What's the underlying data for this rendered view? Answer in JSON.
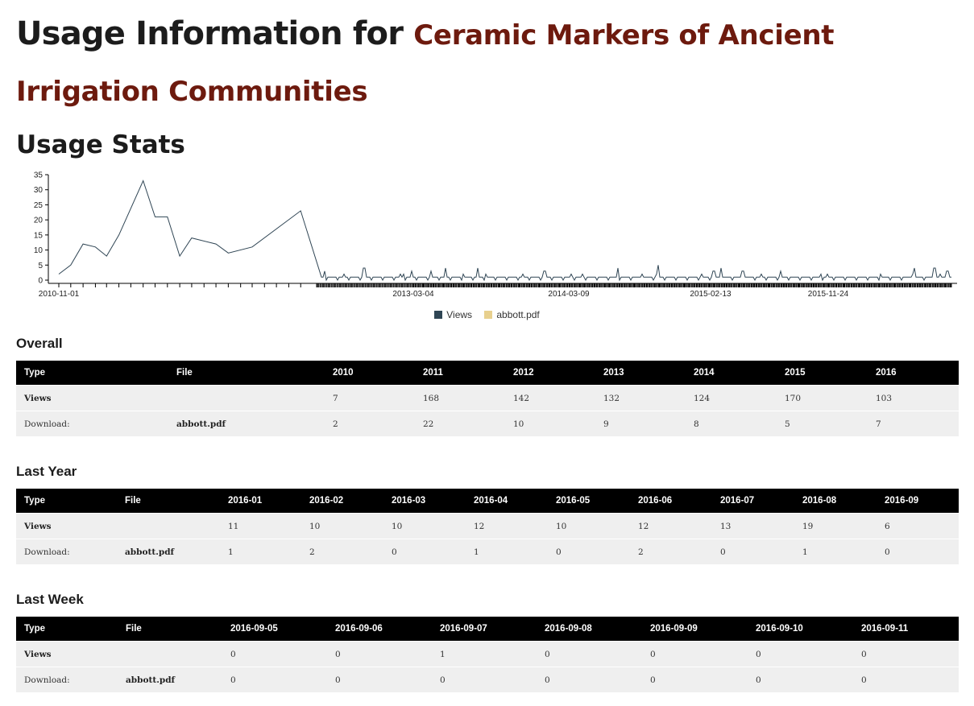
{
  "header": {
    "prefix": "Usage Information for",
    "item_title": "Ceramic Markers of Ancient Irrigation Communities"
  },
  "usage_heading": "Usage Stats",
  "chart_data": {
    "type": "line",
    "x_tick_labels": [
      "2010-11-01",
      "2013-03-04",
      "2014-03-09",
      "2015-02-13",
      "2015-11-24"
    ],
    "y_ticks": [
      0,
      5,
      10,
      15,
      20,
      25,
      30,
      35
    ],
    "ylim": [
      0,
      35
    ],
    "legend": [
      "Views",
      "abbott.pdf"
    ],
    "legend_placement": "bottom-center",
    "colors": {
      "Views": "#2f4554",
      "abbott.pdf": "#e8d08e"
    },
    "series": [
      {
        "name": "Views",
        "early_points": [
          {
            "x": "2010-11",
            "y": 2
          },
          {
            "x": "2010-12",
            "y": 5
          },
          {
            "x": "2011-01",
            "y": 12
          },
          {
            "x": "2011-02",
            "y": 11
          },
          {
            "x": "2011-03",
            "y": 8
          },
          {
            "x": "2011-04",
            "y": 15
          },
          {
            "x": "2011-06",
            "y": 33
          },
          {
            "x": "2011-07",
            "y": 21
          },
          {
            "x": "2011-08",
            "y": 21
          },
          {
            "x": "2011-09",
            "y": 8
          },
          {
            "x": "2011-10",
            "y": 14
          },
          {
            "x": "2011-12",
            "y": 12
          },
          {
            "x": "2012-01",
            "y": 9
          },
          {
            "x": "2012-03",
            "y": 11
          },
          {
            "x": "2012-07",
            "y": 23
          }
        ],
        "daily_baseline": 1,
        "daily_spikes": [
          {
            "x": "2012-08-28",
            "y": 3
          },
          {
            "x": "2012-11-20",
            "y": 4
          },
          {
            "x": "2013-03-01",
            "y": 3
          },
          {
            "x": "2013-04-15",
            "y": 3
          },
          {
            "x": "2013-05-20",
            "y": 4
          },
          {
            "x": "2013-08-05",
            "y": 4
          },
          {
            "x": "2014-01-10",
            "y": 3
          },
          {
            "x": "2014-07-05",
            "y": 4
          },
          {
            "x": "2014-10-10",
            "y": 5
          },
          {
            "x": "2015-02-20",
            "y": 3
          },
          {
            "x": "2015-03-10",
            "y": 4
          },
          {
            "x": "2015-05-01",
            "y": 3
          },
          {
            "x": "2015-08-01",
            "y": 3
          },
          {
            "x": "2016-06-15",
            "y": 4
          },
          {
            "x": "2016-08-01",
            "y": 4
          },
          {
            "x": "2016-09-01",
            "y": 3
          }
        ]
      }
    ]
  },
  "overall": {
    "heading": "Overall",
    "headers": [
      "Type",
      "File",
      "2010",
      "2011",
      "2012",
      "2013",
      "2014",
      "2015",
      "2016"
    ],
    "rows": [
      [
        "Views",
        "",
        "7",
        "168",
        "142",
        "132",
        "124",
        "170",
        "103"
      ],
      [
        "Download:",
        "abbott.pdf",
        "2",
        "22",
        "10",
        "9",
        "8",
        "5",
        "7"
      ]
    ]
  },
  "last_year": {
    "heading": "Last Year",
    "headers": [
      "Type",
      "File",
      "2016-01",
      "2016-02",
      "2016-03",
      "2016-04",
      "2016-05",
      "2016-06",
      "2016-07",
      "2016-08",
      "2016-09"
    ],
    "rows": [
      [
        "Views",
        "",
        "11",
        "10",
        "10",
        "12",
        "10",
        "12",
        "13",
        "19",
        "6"
      ],
      [
        "Download:",
        "abbott.pdf",
        "1",
        "2",
        "0",
        "1",
        "0",
        "2",
        "0",
        "1",
        "0"
      ]
    ]
  },
  "last_week": {
    "heading": "Last Week",
    "headers": [
      "Type",
      "File",
      "2016-09-05",
      "2016-09-06",
      "2016-09-07",
      "2016-09-08",
      "2016-09-09",
      "2016-09-10",
      "2016-09-11"
    ],
    "rows": [
      [
        "Views",
        "",
        "0",
        "0",
        "1",
        "0",
        "0",
        "0",
        "0"
      ],
      [
        "Download:",
        "abbott.pdf",
        "0",
        "0",
        "0",
        "0",
        "0",
        "0",
        "0"
      ]
    ]
  }
}
